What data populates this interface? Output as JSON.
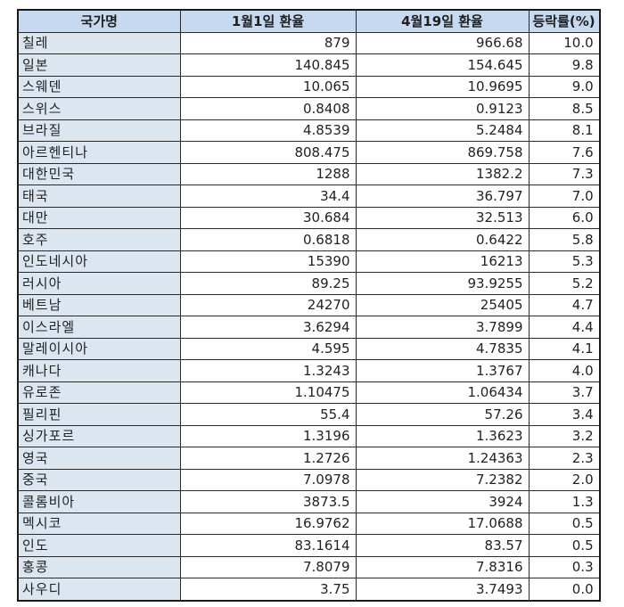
{
  "table": {
    "headers": [
      "국가명",
      "1월1일 환율",
      "4월19일 환율",
      "등락률(%)"
    ],
    "rows": [
      {
        "country": "칠레",
        "jan1": "879",
        "apr19": "966.68",
        "change": "10.0"
      },
      {
        "country": "일본",
        "jan1": "140.845",
        "apr19": "154.645",
        "change": "9.8"
      },
      {
        "country": "스웨덴",
        "jan1": "10.065",
        "apr19": "10.9695",
        "change": "9.0"
      },
      {
        "country": "스위스",
        "jan1": "0.8408",
        "apr19": "0.9123",
        "change": "8.5"
      },
      {
        "country": "브라질",
        "jan1": "4.8539",
        "apr19": "5.2484",
        "change": "8.1"
      },
      {
        "country": "아르헨티나",
        "jan1": "808.475",
        "apr19": "869.758",
        "change": "7.6"
      },
      {
        "country": "대한민국",
        "jan1": "1288",
        "apr19": "1382.2",
        "change": "7.3"
      },
      {
        "country": "태국",
        "jan1": "34.4",
        "apr19": "36.797",
        "change": "7.0"
      },
      {
        "country": "대만",
        "jan1": "30.684",
        "apr19": "32.513",
        "change": "6.0"
      },
      {
        "country": "호주",
        "jan1": "0.6818",
        "apr19": "0.6422",
        "change": "5.8"
      },
      {
        "country": "인도네시아",
        "jan1": "15390",
        "apr19": "16213",
        "change": "5.3"
      },
      {
        "country": "러시아",
        "jan1": "89.25",
        "apr19": "93.9255",
        "change": "5.2"
      },
      {
        "country": "베트남",
        "jan1": "24270",
        "apr19": "25405",
        "change": "4.7"
      },
      {
        "country": "이스라엘",
        "jan1": "3.6294",
        "apr19": "3.7899",
        "change": "4.4"
      },
      {
        "country": "말레이시아",
        "jan1": "4.595",
        "apr19": "4.7835",
        "change": "4.1"
      },
      {
        "country": "캐나다",
        "jan1": "1.3243",
        "apr19": "1.3767",
        "change": "4.0"
      },
      {
        "country": "유로존",
        "jan1": "1.10475",
        "apr19": "1.06434",
        "change": "3.7"
      },
      {
        "country": "필리핀",
        "jan1": "55.4",
        "apr19": "57.26",
        "change": "3.4"
      },
      {
        "country": "싱가포르",
        "jan1": "1.3196",
        "apr19": "1.3623",
        "change": "3.2"
      },
      {
        "country": "영국",
        "jan1": "1.2726",
        "apr19": "1.24363",
        "change": "2.3"
      },
      {
        "country": "중국",
        "jan1": "7.0978",
        "apr19": "7.2382",
        "change": "2.0"
      },
      {
        "country": "콜롬비아",
        "jan1": "3873.5",
        "apr19": "3924",
        "change": "1.3"
      },
      {
        "country": "멕시코",
        "jan1": "16.9762",
        "apr19": "17.0688",
        "change": "0.5"
      },
      {
        "country": "인도",
        "jan1": "83.1614",
        "apr19": "83.57",
        "change": "0.5"
      },
      {
        "country": "홍콩",
        "jan1": "7.8079",
        "apr19": "7.8316",
        "change": "0.3"
      },
      {
        "country": "사우디",
        "jan1": "3.75",
        "apr19": "3.7493",
        "change": "0.0"
      }
    ]
  },
  "colors": {
    "header_bg": "#c6d9f0",
    "country_col_bg": "#dce6f1",
    "cell_bg": "#ffffff",
    "border": "#2a2a2a"
  }
}
